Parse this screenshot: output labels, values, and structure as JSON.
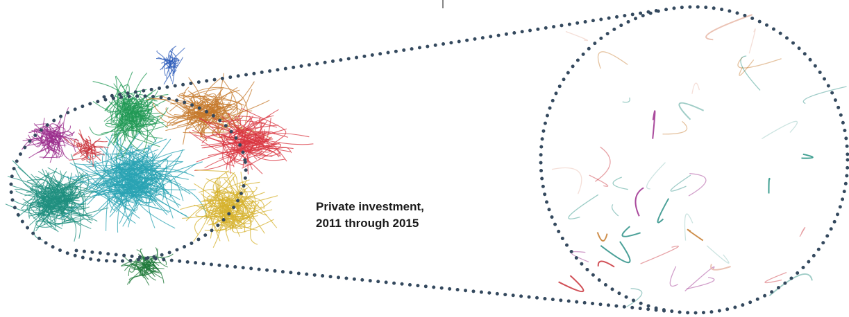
{
  "label": {
    "line1": "Private investment,",
    "line2": "2011 through 2015"
  }
}
